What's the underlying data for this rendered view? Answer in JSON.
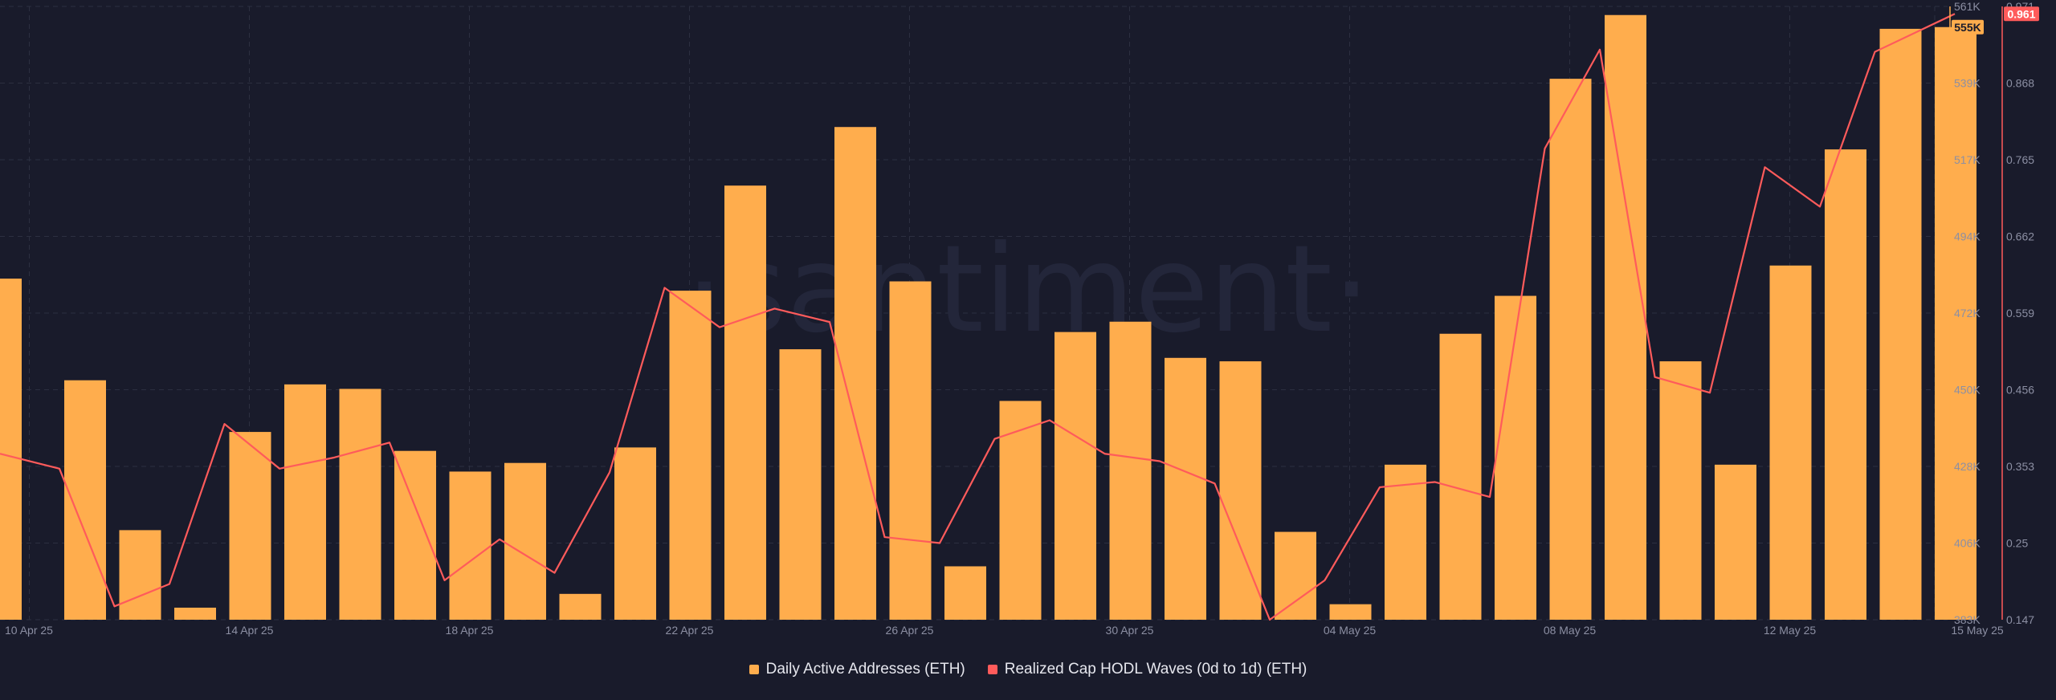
{
  "colors": {
    "background": "#191b2b",
    "bars": "#ffad4d",
    "line": "#ff5b5b",
    "grid": "#2c2f40",
    "axis_text": "#8c8fa3"
  },
  "watermark": "·santiment·",
  "chart_data": {
    "type": "bar",
    "x": [
      "10 Apr 25",
      "11 Apr 25",
      "12 Apr 25",
      "13 Apr 25",
      "14 Apr 25",
      "15 Apr 25",
      "16 Apr 25",
      "17 Apr 25",
      "18 Apr 25",
      "19 Apr 25",
      "20 Apr 25",
      "21 Apr 25",
      "22 Apr 25",
      "23 Apr 25",
      "24 Apr 25",
      "25 Apr 25",
      "26 Apr 25",
      "27 Apr 25",
      "28 Apr 25",
      "29 Apr 25",
      "30 Apr 25",
      "01 May 25",
      "02 May 25",
      "03 May 25",
      "04 May 25",
      "05 May 25",
      "06 May 25",
      "07 May 25",
      "08 May 25",
      "09 May 25",
      "10 May 25",
      "11 May 25",
      "12 May 25",
      "13 May 25",
      "14 May 25",
      "15 May 25"
    ],
    "x_tick_labels": [
      "10 Apr 25",
      "14 Apr 25",
      "18 Apr 25",
      "22 Apr 25",
      "26 Apr 25",
      "30 Apr 25",
      "04 May 25",
      "08 May 25",
      "12 May 25",
      "15 May 25"
    ],
    "series": [
      {
        "name": "Daily Active Addresses (ETH)",
        "type": "bar",
        "axis": "right-primary",
        "values": [
          482000,
          452500,
          409000,
          386500,
          437500,
          451300,
          450000,
          432000,
          426000,
          428500,
          390500,
          433000,
          478500,
          509000,
          461500,
          526000,
          481200,
          398500,
          446500,
          466500,
          469500,
          459000,
          458000,
          408500,
          387500,
          428000,
          466000,
          477000,
          540000,
          558500,
          458000,
          428000,
          485800,
          519500,
          554500,
          555000
        ]
      },
      {
        "name": "Realized Cap HODL Waves (0d to 1d) (ETH)",
        "type": "line",
        "axis": "right-secondary",
        "values": [
          0.37,
          0.35,
          0.165,
          0.195,
          0.41,
          0.35,
          0.365,
          0.385,
          0.2,
          0.255,
          0.21,
          0.345,
          0.593,
          0.54,
          0.565,
          0.547,
          0.258,
          0.25,
          0.39,
          0.415,
          0.37,
          0.36,
          0.33,
          0.147,
          0.2,
          0.325,
          0.332,
          0.312,
          0.78,
          0.913,
          0.473,
          0.452,
          0.755,
          0.702,
          0.91,
          0.961
        ]
      }
    ],
    "y_axes": [
      {
        "id": "right-primary",
        "range": [
          383000,
          561000
        ],
        "tick_labels": [
          "383K",
          "406K",
          "428K",
          "450K",
          "472K",
          "494K",
          "517K",
          "539K",
          "561K"
        ],
        "last_value_label": "555K"
      },
      {
        "id": "right-secondary",
        "range": [
          0.147,
          0.971
        ],
        "tick_labels": [
          "0.147",
          "0.25",
          "0.353",
          "0.456",
          "0.559",
          "0.662",
          "0.765",
          "0.868",
          "0.971"
        ],
        "last_value_label": "0.961"
      }
    ],
    "grid": true,
    "legend": {
      "placement": "bottom-center",
      "entries": [
        {
          "label": "Daily Active Addresses (ETH)",
          "color": "#ffad4d"
        },
        {
          "label": "Realized Cap HODL Waves (0d to 1d) (ETH)",
          "color": "#ff5b5b"
        }
      ]
    }
  }
}
